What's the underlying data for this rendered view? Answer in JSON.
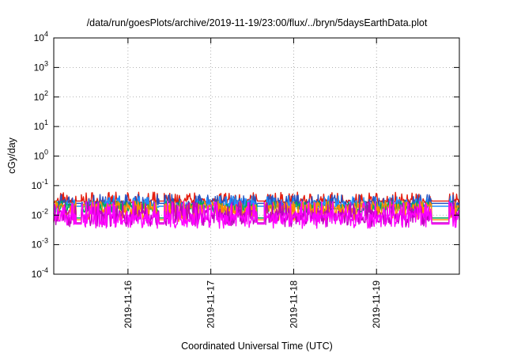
{
  "chart_data": {
    "type": "line",
    "title": "/data/run/goesPlots/archive/2019-11-19/23:00/flux/../bryn/5daysEarthData.plot",
    "xlabel": "Coordinated Universal Time (UTC)",
    "ylabel": "cGy/day",
    "yscale": "log",
    "ylim": [
      0.0001,
      10000
    ],
    "xlim": [
      "2019-11-15 02:30",
      "2019-11-20 00:00"
    ],
    "y_ticks": [
      {
        "base": "10",
        "exp": "-4"
      },
      {
        "base": "10",
        "exp": "-3"
      },
      {
        "base": "10",
        "exp": "-2"
      },
      {
        "base": "10",
        "exp": "-1"
      },
      {
        "base": "10",
        "exp": "0"
      },
      {
        "base": "10",
        "exp": "1"
      },
      {
        "base": "10",
        "exp": "2"
      },
      {
        "base": "10",
        "exp": "3"
      },
      {
        "base": "10",
        "exp": "4"
      }
    ],
    "x_ticks": [
      "2019-11-16",
      "2019-11-17",
      "2019-11-18",
      "2019-11-19"
    ],
    "grid": "major, dotted",
    "legend": "none",
    "series": [
      {
        "color": "#e51e10",
        "base": 0.03,
        "peak": 0.06,
        "trough": 0.026,
        "gap_level": 0.03
      },
      {
        "color": "#2a52be",
        "base": 0.025,
        "peak": 0.05,
        "trough": 0.02,
        "gap_level": 0.025
      },
      {
        "color": "#1e90ff",
        "base": 0.022,
        "peak": 0.045,
        "trough": 0.018,
        "gap_level": 0.02
      },
      {
        "color": "#00a65a",
        "base": 0.02,
        "peak": 0.03,
        "trough": 0.012,
        "gap_level": 0.008
      },
      {
        "color": "#ff8c00",
        "base": 0.02,
        "peak": 0.03,
        "trough": 0.006,
        "gap_level": 0.007
      },
      {
        "color": "#c000c0",
        "base": 0.012,
        "peak": 0.03,
        "trough": 0.004,
        "gap_level": 0.0055
      },
      {
        "color": "#ff00ff",
        "base": 0.01,
        "peak": 0.03,
        "trough": 0.0035,
        "gap_level": 0.005
      }
    ],
    "data_gaps": [
      [
        "2019-11-15 09:00",
        "2019-11-15 10:30"
      ],
      [
        "2019-11-16 09:00",
        "2019-11-16 10:30"
      ],
      [
        "2019-11-17 13:30",
        "2019-11-17 15:30"
      ],
      [
        "2019-11-19 16:00",
        "2019-11-19 21:00"
      ]
    ]
  }
}
